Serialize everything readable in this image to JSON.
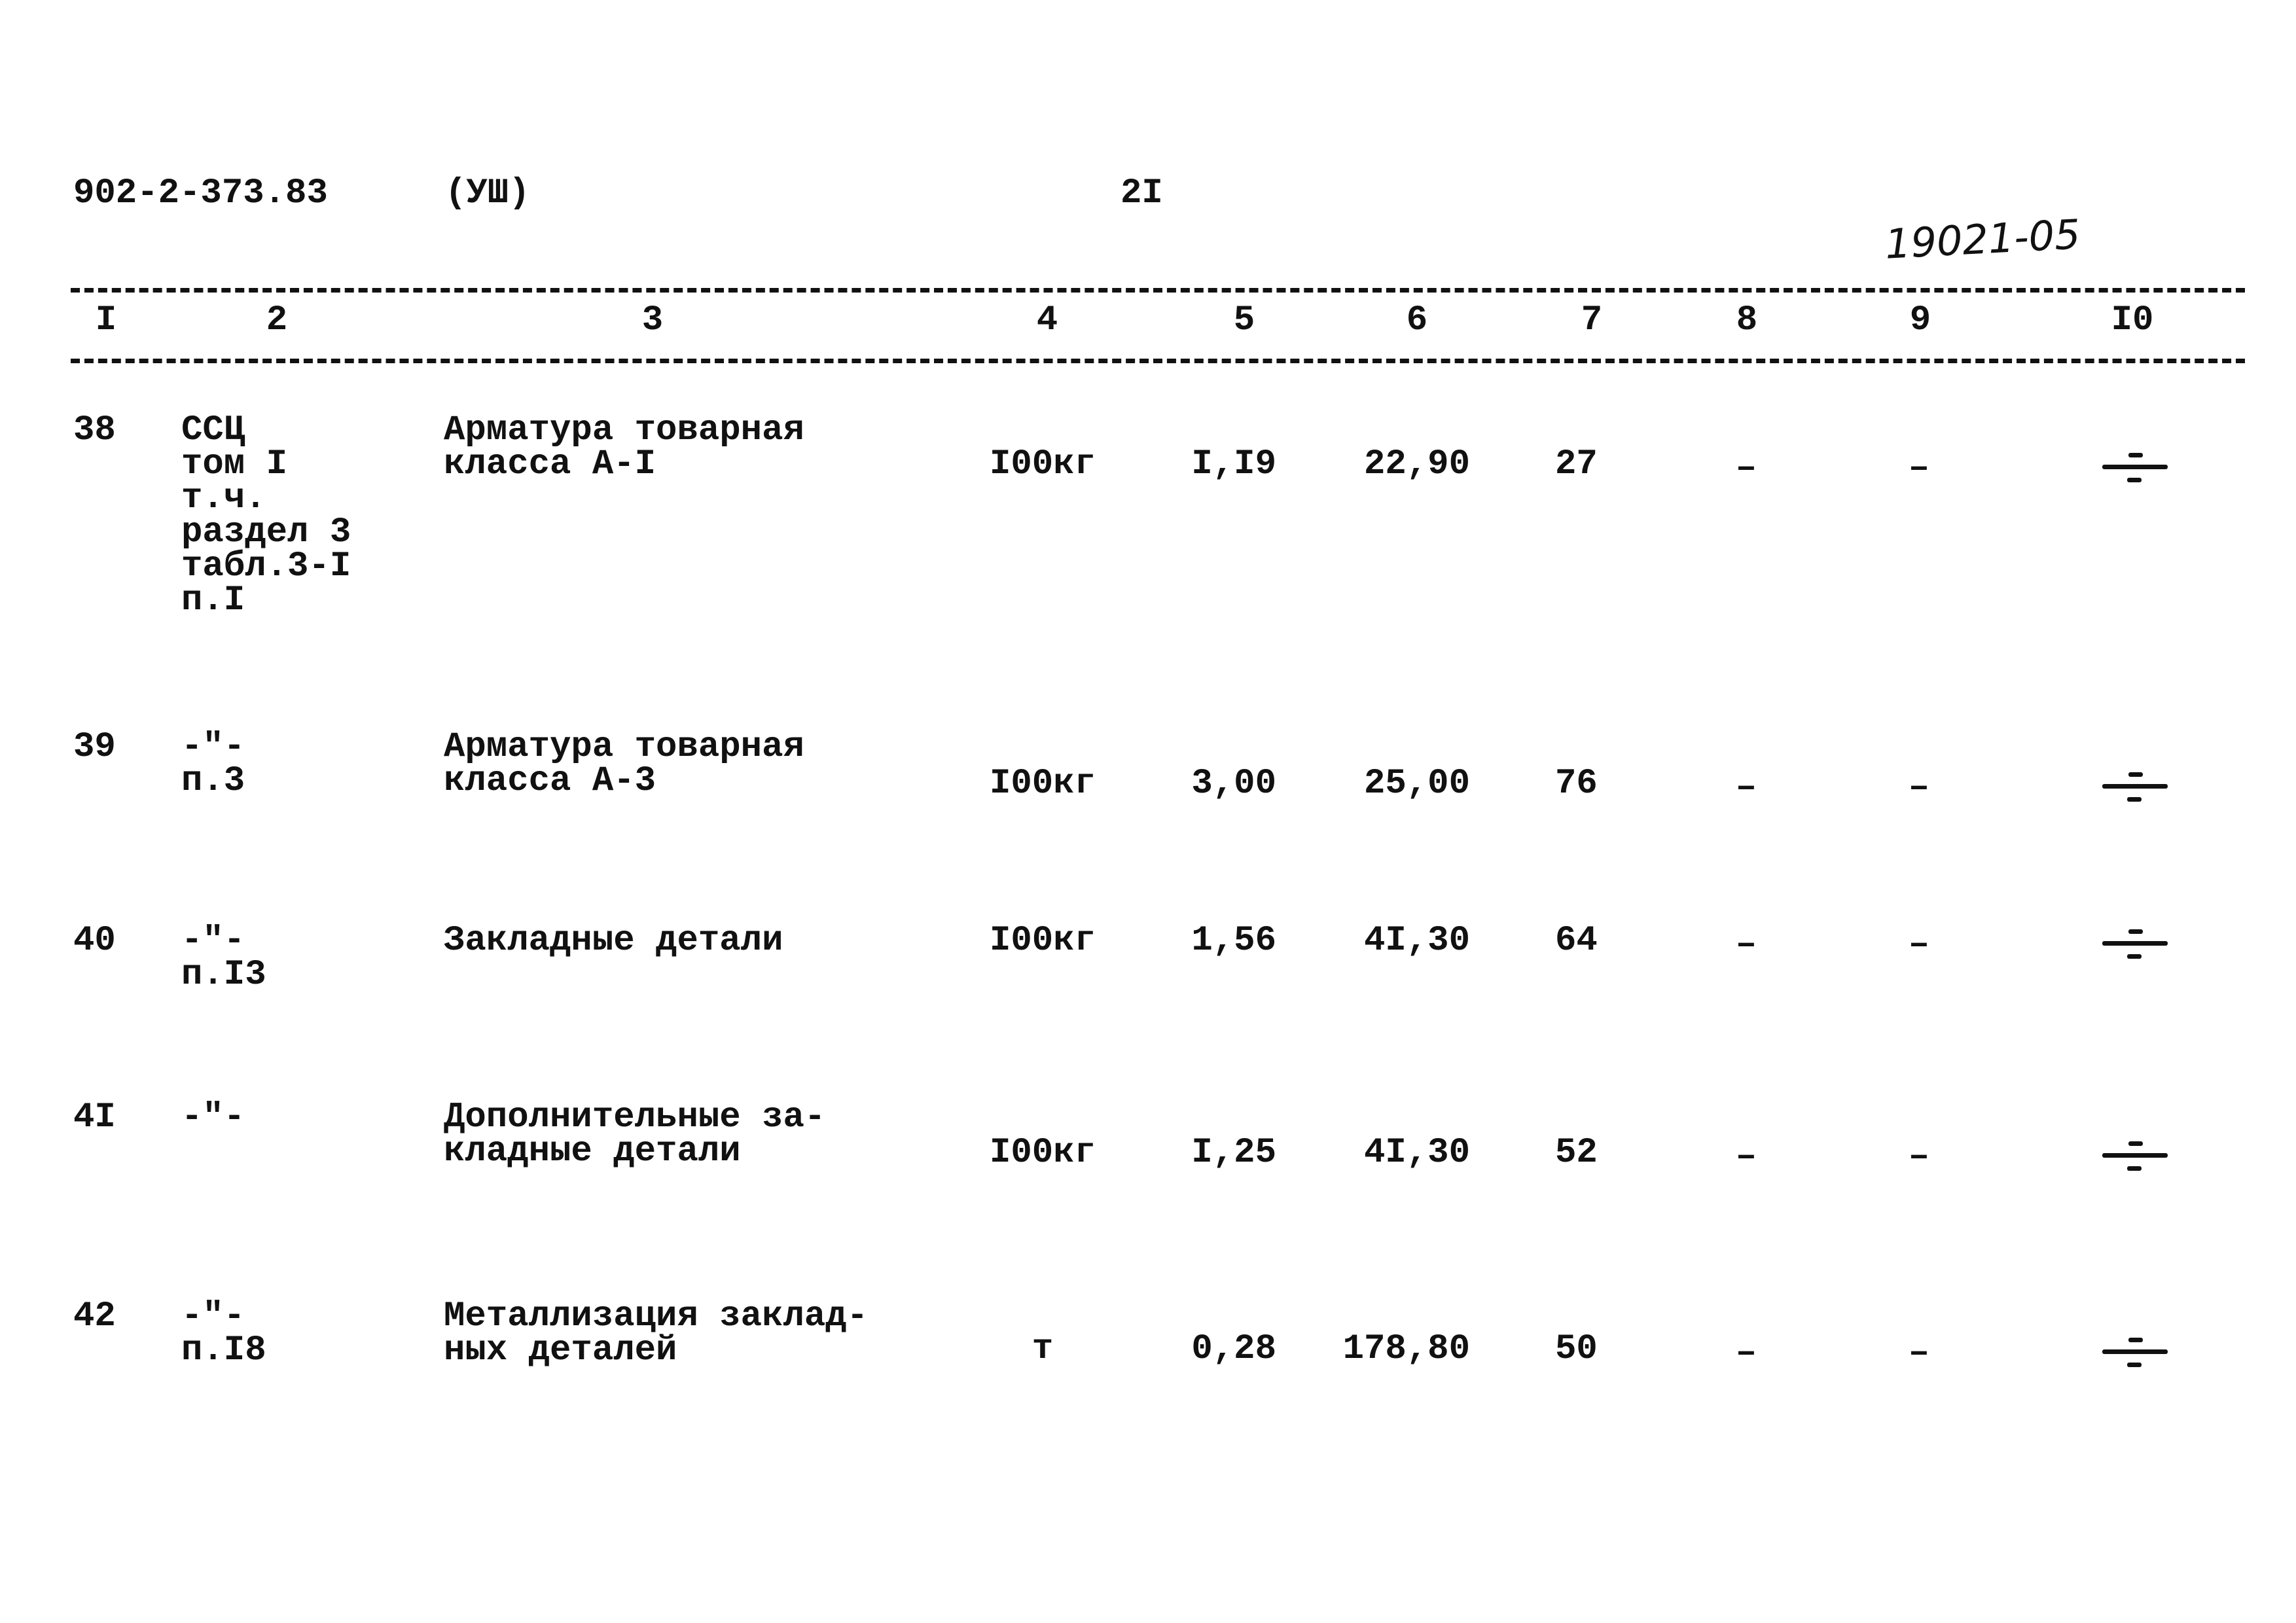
{
  "header": {
    "doc_number": "902-2-373.83",
    "volume": "(УШ)",
    "page_number": "2I",
    "handwritten_code": "19021-05"
  },
  "columns": [
    "I",
    "2",
    "3",
    "4",
    "5",
    "6",
    "7",
    "8",
    "9",
    "I0"
  ],
  "rows": [
    {
      "no": "38",
      "ref": [
        "ССЦ",
        "том I",
        "т.ч.",
        "раздел 3",
        "табл.3-I",
        "п.I"
      ],
      "name": [
        "Арматура товарная",
        "класса А-I"
      ],
      "unit": "I00кг",
      "c5": "I,I9",
      "c6": "22,90",
      "c7": "27",
      "c8": "–",
      "c9": "–",
      "c10_icon": "division-sign-icon"
    },
    {
      "no": "39",
      "ref": [
        "-\"-",
        "п.3"
      ],
      "name": [
        "Арматура товарная",
        "класса А-3"
      ],
      "unit": "I00кг",
      "c5": "3,00",
      "c6": "25,00",
      "c7": "76",
      "c8": "–",
      "c9": "–",
      "c10_icon": "division-sign-icon"
    },
    {
      "no": "40",
      "ref": [
        "-\"-",
        "п.I3"
      ],
      "name": [
        "Закладные детали"
      ],
      "unit": "I00кг",
      "c5": "1,56",
      "c6": "4I,30",
      "c7": "64",
      "c8": "–",
      "c9": "–",
      "c10_icon": "division-sign-icon"
    },
    {
      "no": "4I",
      "ref": [
        "-\"-"
      ],
      "name": [
        "Дополнительные за-",
        "кладные детали"
      ],
      "unit": "I00кг",
      "c5": "I,25",
      "c6": "4I,30",
      "c7": "52",
      "c8": "–",
      "c9": "–",
      "c10_icon": "division-sign-icon"
    },
    {
      "no": "42",
      "ref": [
        "-\"-",
        "п.I8"
      ],
      "name": [
        "Металлизация заклад-",
        "ных деталей"
      ],
      "unit": "т",
      "c5": "0,28",
      "c6": "178,80",
      "c7": "50",
      "c8": "–",
      "c9": "–",
      "c10_icon": "division-sign-icon"
    }
  ]
}
